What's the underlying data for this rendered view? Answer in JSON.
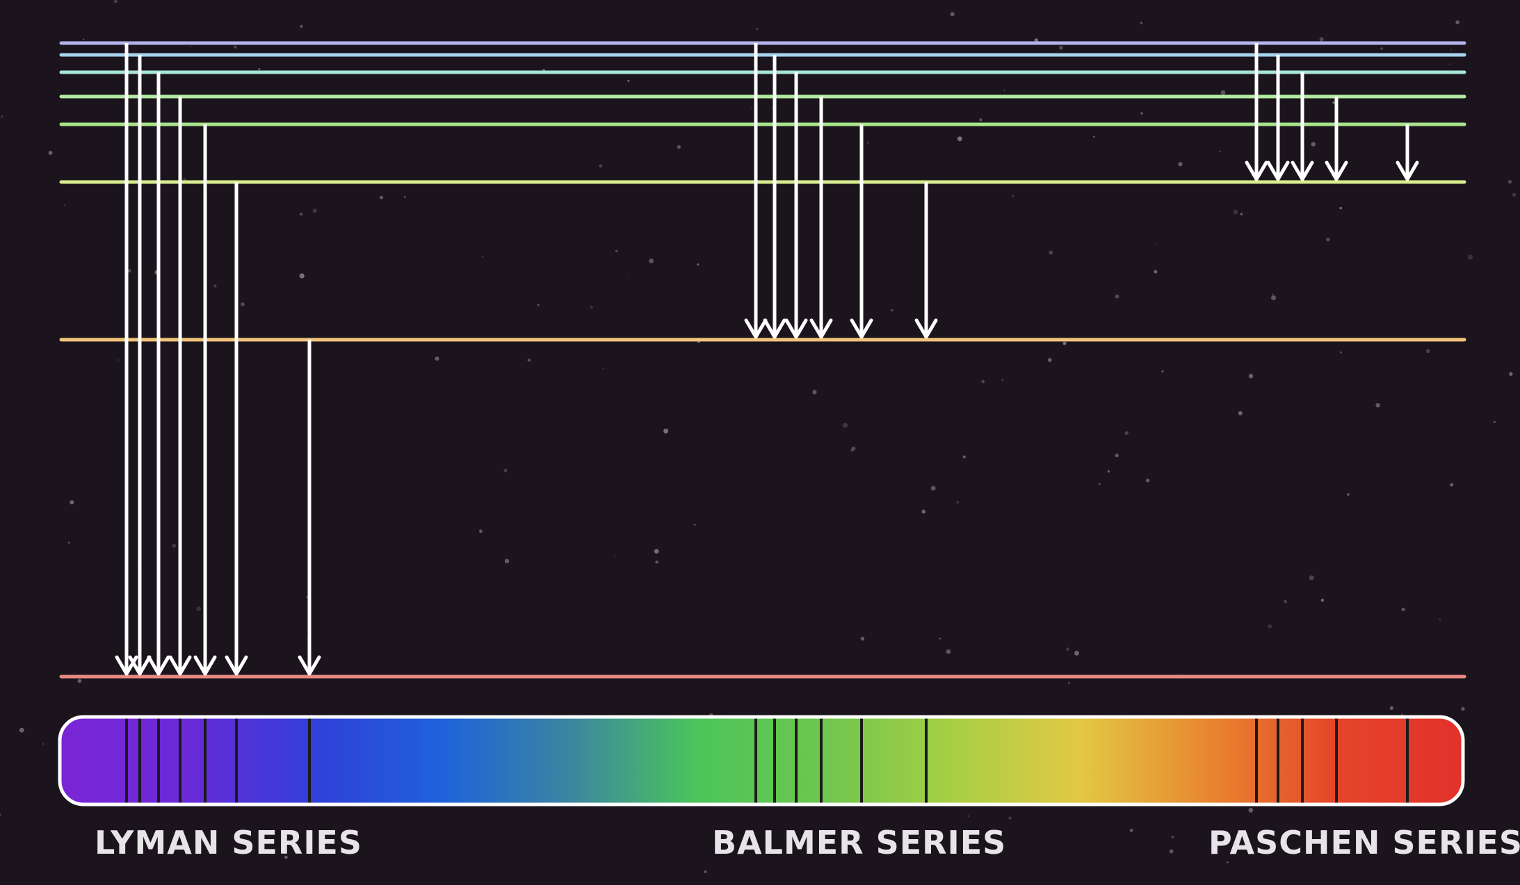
{
  "levels": [
    {
      "n": 1,
      "color": "#e88a82"
    },
    {
      "n": 2,
      "color": "#f2c479"
    },
    {
      "n": 3,
      "color": "#d8ee8f"
    },
    {
      "n": 4,
      "color": "#a8e48a"
    },
    {
      "n": 5,
      "color": "#b2eba2"
    },
    {
      "n": 6,
      "color": "#a7e6d3"
    },
    {
      "n": 7,
      "color": "#a7d4ee"
    },
    {
      "n": 8,
      "color": "#b4b3ee"
    }
  ],
  "series": [
    {
      "key": "lyman",
      "label": "LYMAN SERIES",
      "final_level": 1,
      "from_levels": [
        8,
        7,
        6,
        5,
        4,
        3,
        2
      ]
    },
    {
      "key": "balmer",
      "label": "BALMER SERIES",
      "final_level": 2,
      "from_levels": [
        8,
        7,
        6,
        5,
        4,
        3
      ]
    },
    {
      "key": "paschen",
      "label": "PASCHEN SERIES",
      "final_level": 3,
      "from_levels": [
        8,
        7,
        6,
        5,
        4
      ]
    }
  ],
  "spectrum": {
    "gradient": [
      "#7a25d6",
      "#6a2ad8",
      "#3040d8",
      "#1f62db",
      "#3b86a0",
      "#4cc55a",
      "#6ec64e",
      "#a8cf45",
      "#e2c844",
      "#e8872f",
      "#e5452a",
      "#e2312a"
    ],
    "border_color": "#ffffff",
    "line_color": "#1a1a1a"
  },
  "colors": {
    "background": "#1b141d",
    "arrow": "#ffffff"
  }
}
